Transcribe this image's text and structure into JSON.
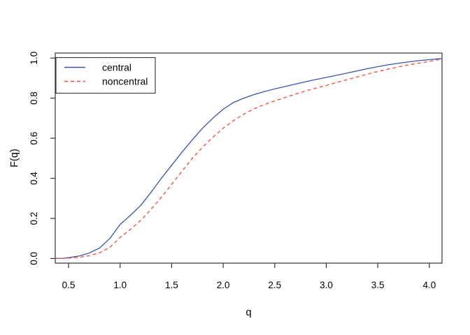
{
  "figure": {
    "background": "#ffffff",
    "box_color": "#333333",
    "tick_color": "#333333",
    "text_color": "#000000"
  },
  "chart_data": {
    "type": "line",
    "title": "",
    "xlabel": "q",
    "ylabel": "F(q)",
    "x_ticks": [
      0.5,
      1.0,
      1.5,
      2.0,
      2.5,
      3.0,
      3.5,
      4.0
    ],
    "y_ticks": [
      0.0,
      0.2,
      0.4,
      0.6,
      0.8,
      1.0
    ],
    "xlim": [
      0.371,
      4.123
    ],
    "ylim": [
      -0.023,
      1.025
    ],
    "grid": false,
    "legend": {
      "position": "top-left",
      "border": true
    },
    "x": [
      0.371,
      0.45,
      0.5,
      0.6,
      0.7,
      0.8,
      0.9,
      1.0,
      1.1,
      1.2,
      1.3,
      1.4,
      1.5,
      1.6,
      1.7,
      1.8,
      1.9,
      2.0,
      2.1,
      2.2,
      2.3,
      2.4,
      2.5,
      2.6,
      2.7,
      2.8,
      2.9,
      3.0,
      3.1,
      3.2,
      3.3,
      3.4,
      3.5,
      3.6,
      3.7,
      3.8,
      3.9,
      4.0,
      4.123
    ],
    "series": [
      {
        "name": "central",
        "color": "#3b54a5",
        "line_style": "solid",
        "values": [
          0,
          0.001,
          0.004,
          0.012,
          0.027,
          0.052,
          0.1,
          0.17,
          0.215,
          0.265,
          0.33,
          0.4,
          0.465,
          0.53,
          0.592,
          0.65,
          0.7,
          0.745,
          0.778,
          0.8,
          0.818,
          0.833,
          0.846,
          0.858,
          0.87,
          0.882,
          0.893,
          0.903,
          0.914,
          0.925,
          0.936,
          0.947,
          0.957,
          0.966,
          0.974,
          0.981,
          0.987,
          0.992,
          0.998
        ]
      },
      {
        "name": "noncentral",
        "color": "#eb4a36",
        "line_style": "dashed",
        "values": [
          0,
          0.001,
          0.002,
          0.006,
          0.014,
          0.028,
          0.055,
          0.105,
          0.145,
          0.19,
          0.245,
          0.305,
          0.37,
          0.435,
          0.5,
          0.555,
          0.605,
          0.65,
          0.688,
          0.72,
          0.747,
          0.768,
          0.787,
          0.803,
          0.82,
          0.836,
          0.85,
          0.863,
          0.878,
          0.892,
          0.906,
          0.92,
          0.933,
          0.945,
          0.956,
          0.966,
          0.975,
          0.983,
          0.996
        ]
      }
    ]
  }
}
